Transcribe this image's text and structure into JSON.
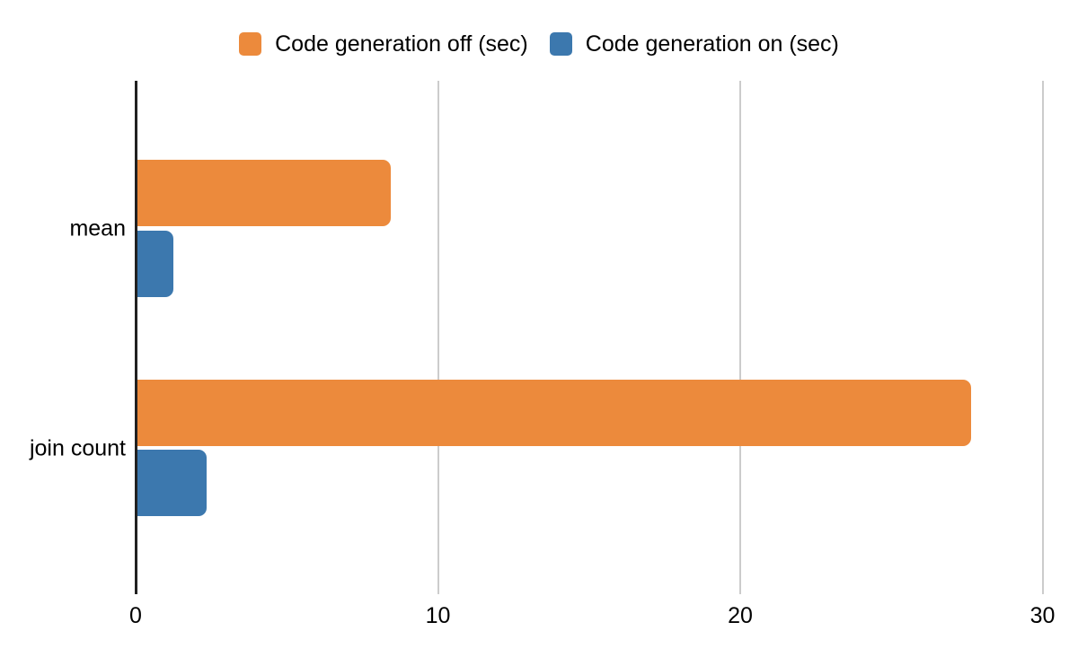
{
  "chart_data": {
    "type": "bar",
    "orientation": "horizontal",
    "title": "",
    "xlabel": "",
    "ylabel": "",
    "categories": [
      "mean",
      "join count"
    ],
    "series": [
      {
        "name": "Code generation off (sec)",
        "color": "#EC8A3C",
        "values": [
          8.4,
          27.6
        ]
      },
      {
        "name": "Code generation on (sec)",
        "color": "#3C78AE",
        "values": [
          1.2,
          2.3
        ]
      }
    ],
    "x_ticks": [
      "0",
      "10",
      "20",
      "30"
    ],
    "x_tick_values": [
      0,
      10,
      20,
      30
    ],
    "xlim": [
      0,
      30.9
    ],
    "grid": "vertical-gridlines-on",
    "legend_position": "top-center",
    "colors": {
      "background": "#FFFFFF",
      "axis": "#212121",
      "gridline": "#CCCCCC",
      "text": "#000000"
    }
  }
}
